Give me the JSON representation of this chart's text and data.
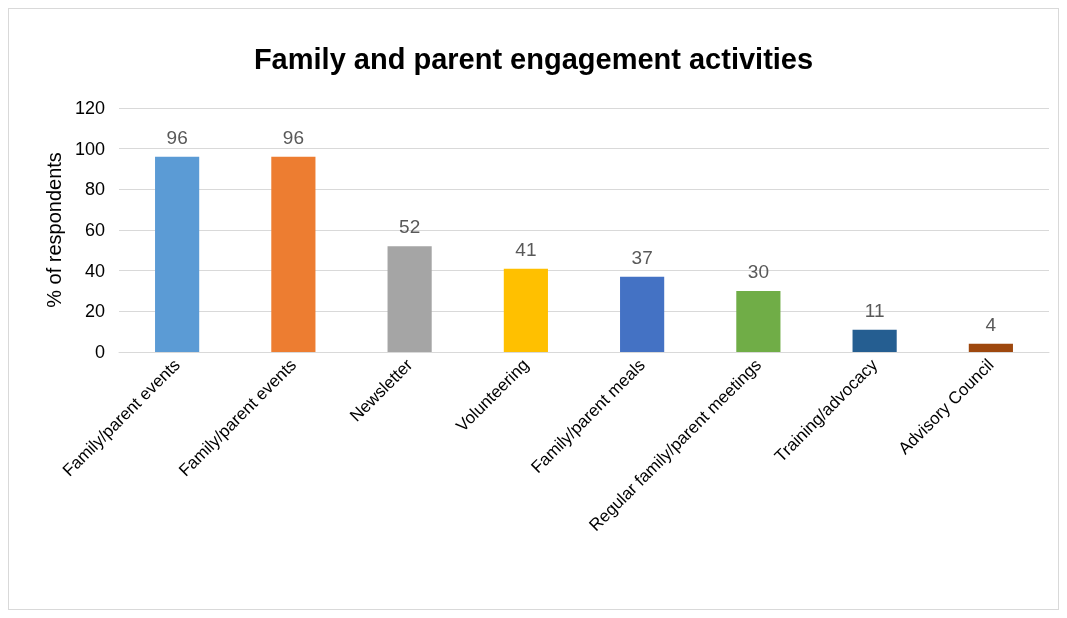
{
  "chart_data": {
    "type": "bar",
    "title": "Family and parent engagement activities",
    "ylabel": "% of respondents",
    "categories": [
      "Family/parent events",
      "Family/parent events",
      "Newsletter",
      "Volunteering",
      "Family/parent meals",
      "Regular family/parent meetings",
      "Training/advocacy",
      "Advisory Council"
    ],
    "values": [
      96,
      96,
      52,
      41,
      37,
      30,
      11,
      4
    ],
    "colors": [
      "#5b9bd5",
      "#ed7d31",
      "#a5a5a5",
      "#ffc000",
      "#4472c4",
      "#70ad47",
      "#255e91",
      "#9e480e"
    ],
    "ylim": [
      0,
      120
    ],
    "yticks": [
      0,
      20,
      40,
      60,
      80,
      100,
      120
    ],
    "grid": "y",
    "data_labels": true
  }
}
